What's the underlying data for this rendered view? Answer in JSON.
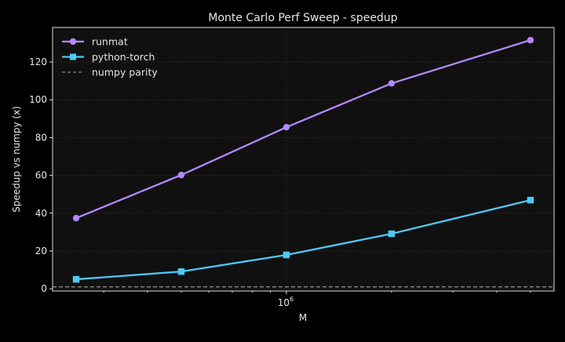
{
  "chart_data": {
    "type": "line",
    "title": "Monte Carlo Perf Sweep - speedup",
    "xlabel": "M",
    "ylabel": "Speedup vs numpy (x)",
    "xscale": "log",
    "xlim": [
      214000,
      5840000
    ],
    "ylim": [
      -1.2,
      138.3
    ],
    "x": [
      250000,
      500000,
      1000000,
      2000000,
      5000000
    ],
    "x_ticks": [
      {
        "value": 1000000,
        "base": "10",
        "exp": "6"
      }
    ],
    "y_ticks": [
      0,
      20,
      40,
      60,
      80,
      100,
      120
    ],
    "grid": true,
    "legend": "top-left",
    "series": [
      {
        "name": "runmat",
        "color": "#b388ff",
        "marker": "circle",
        "values": [
          37.4,
          60.2,
          85.5,
          108.7,
          131.6
        ]
      },
      {
        "name": "python-torch",
        "color": "#4fc8f5",
        "marker": "square",
        "values": [
          5.0,
          9.1,
          17.9,
          29.1,
          46.9
        ]
      }
    ],
    "reference_lines": [
      {
        "name": "numpy parity",
        "y": 1,
        "color": "#888888",
        "style": "dashed"
      }
    ]
  },
  "colors": {
    "background": "#000000",
    "plot_background": "#101010",
    "text": "#e6e6e6",
    "axis": "#dddddd"
  }
}
